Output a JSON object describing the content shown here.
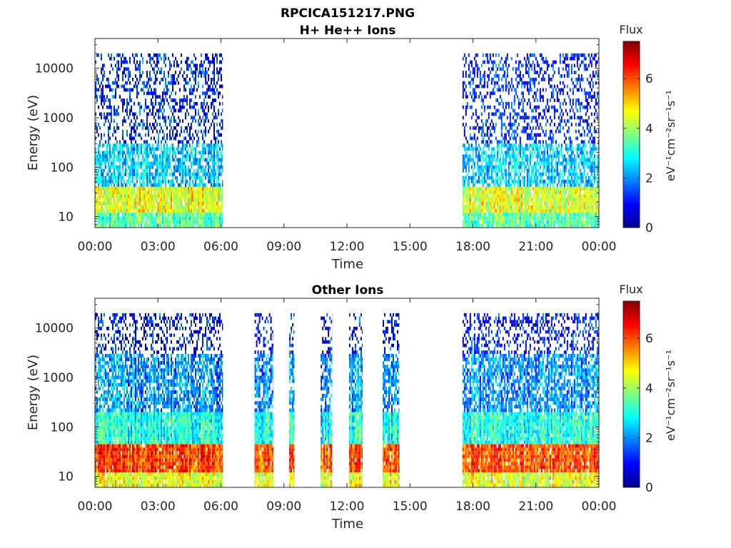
{
  "figure": {
    "title_line1": "RPCICA151217.PNG"
  },
  "colorbar": {
    "label": "Flux",
    "unit_label": "eV⁻¹cm⁻²sr⁻¹s⁻¹",
    "ticks": [
      "0",
      "2",
      "4",
      "6"
    ],
    "range": [
      0,
      7.5
    ],
    "colormap": "jet"
  },
  "chart_data": [
    {
      "type": "heatmap",
      "title": "H+ He++ Ions",
      "xlabel": "Time",
      "ylabel": "Energy (eV)",
      "x_ticks": [
        "00:00",
        "03:00",
        "06:00",
        "09:00",
        "12:00",
        "15:00",
        "18:00",
        "21:00",
        "00:00"
      ],
      "y_ticks": [
        "10",
        "100",
        "1000",
        "10000"
      ],
      "x_range_hours": [
        0,
        24
      ],
      "y_range_eV": [
        6,
        40000
      ],
      "y_scale": "log",
      "grid": false,
      "data_intervals_hours": [
        [
          0,
          6.1
        ],
        [
          17.5,
          24
        ]
      ],
      "flux_profile": [
        {
          "energy_eV_min": 6,
          "energy_eV_max": 12,
          "flux": 3.5
        },
        {
          "energy_eV_min": 12,
          "energy_eV_max": 40,
          "flux": 4.5
        },
        {
          "energy_eV_min": 40,
          "energy_eV_max": 300,
          "flux": 2.5
        },
        {
          "energy_eV_min": 300,
          "energy_eV_max": 20000,
          "flux": 1.2
        }
      ]
    },
    {
      "type": "heatmap",
      "title": "Other Ions",
      "xlabel": "Time",
      "ylabel": "Energy (eV)",
      "x_ticks": [
        "00:00",
        "03:00",
        "06:00",
        "09:00",
        "12:00",
        "15:00",
        "18:00",
        "21:00",
        "00:00"
      ],
      "y_ticks": [
        "10",
        "100",
        "1000",
        "10000"
      ],
      "x_range_hours": [
        0,
        24
      ],
      "y_range_eV": [
        6,
        40000
      ],
      "y_scale": "log",
      "grid": false,
      "data_intervals_hours": [
        [
          0,
          6.1
        ],
        [
          7.6,
          8.5
        ],
        [
          9.25,
          9.5
        ],
        [
          10.75,
          11.3
        ],
        [
          12.1,
          12.75
        ],
        [
          13.7,
          14.5
        ],
        [
          17.5,
          24
        ]
      ],
      "flux_profile": [
        {
          "energy_eV_min": 6,
          "energy_eV_max": 12,
          "flux": 4.5
        },
        {
          "energy_eV_min": 12,
          "energy_eV_max": 45,
          "flux": 6.0
        },
        {
          "energy_eV_min": 45,
          "energy_eV_max": 200,
          "flux": 3.0
        },
        {
          "energy_eV_min": 200,
          "energy_eV_max": 3000,
          "flux": 2.0
        },
        {
          "energy_eV_min": 3000,
          "energy_eV_max": 20000,
          "flux": 1.0
        }
      ]
    }
  ]
}
